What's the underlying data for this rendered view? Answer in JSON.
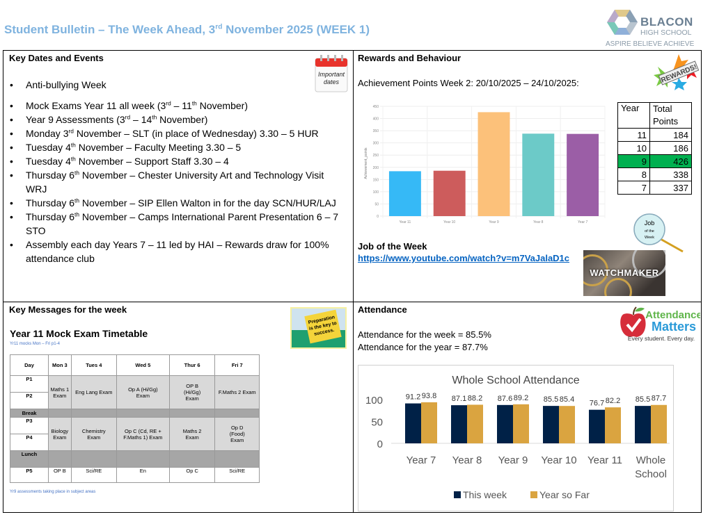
{
  "header": {
    "title_prefix": "Student Bulletin – The Week Ahead, 3",
    "title_sup": "rd",
    "title_suffix": " November 2025 (WEEK 1)",
    "logo_name": "BLACON",
    "logo_sub": "HIGH SCHOOL",
    "logo_tagline": "ASPIRE BELIEVE ACHIEVE"
  },
  "key_dates": {
    "heading": "Key Dates and Events",
    "image_text": "Important dates",
    "items": [
      {
        "a": "Anti-bullying Week"
      },
      {
        "a": "Mock Exams Year 11 all week (3",
        "s1": "rd",
        "b": " – 11",
        "s2": "th",
        "c": " November)"
      },
      {
        "a": "Year 9 Assessments (3",
        "s1": "rd",
        "b": " – 14",
        "s2": "th",
        "c": " November)"
      },
      {
        "a": "Monday 3",
        "s1": "rd",
        "b": " November – SLT (in place of Wednesday) 3.30 – 5 HUR"
      },
      {
        "a": "Tuesday 4",
        "s1": "th",
        "b": " November – Faculty Meeting 3.30 – 5"
      },
      {
        "a": "Tuesday 4",
        "s1": "th",
        "b": " November – Support Staff 3.30 – 4"
      },
      {
        "a": "Thursday 6",
        "s1": "th",
        "b": " November – Chester University Art and Technology Visit WRJ"
      },
      {
        "a": "Thursday 6",
        "s1": "th",
        "b": " November – SIP Ellen Walton in for the day SCN/HUR/LAJ"
      },
      {
        "a": "Thursday 6",
        "s1": "th",
        "b": " November – Camps International Parent Presentation 6 – 7 STO"
      },
      {
        "a": "Assembly each day Years 7 – 11 led by HAI – Rewards draw for 100% attendance club"
      }
    ]
  },
  "rewards": {
    "heading": "Rewards and Behaviour",
    "image_text": "REWARDS!",
    "subtitle": "Achievement Points Week 2: 20/10/2025 – 24/10/2025:",
    "table": {
      "headers": [
        "Year",
        "Total Points"
      ],
      "rows": [
        {
          "year": "11",
          "points": "184"
        },
        {
          "year": "10",
          "points": "186"
        },
        {
          "year": "9",
          "points": "426"
        },
        {
          "year": "8",
          "points": "338"
        },
        {
          "year": "7",
          "points": "337"
        }
      ]
    },
    "job_heading": "Job of the Week",
    "job_link": "https://www.youtube.com/watch?v=m7VaJalaD1c",
    "job_badge": [
      "Job",
      "of the",
      "Week"
    ],
    "job_image_text": "WATCHMAKER"
  },
  "messages": {
    "heading": "Key Messages for the week",
    "timetable_title": "Year 11 Mock Exam Timetable",
    "note_top": "Yr11 mocks Mon – Fri p1-4",
    "note_bottom": "Yr9 assessments taking place in subject areas",
    "image_text": "Preparation is the key to success.",
    "columns": [
      "Day",
      "Mon 3",
      "Tues 4",
      "Wed 5",
      "Thur 6",
      "Fri 7"
    ],
    "periods": {
      "p1": "P1",
      "p2": "P2",
      "brk": "Break",
      "p3": "P3",
      "p4": "P4",
      "lunch": "Lunch",
      "p5": "P5"
    },
    "am": [
      "Maths 1 Exam",
      "Eng Lang Exam",
      "Op A (Hi/Gg) Exam",
      "OP B (Hi/Gg) Exam",
      "F.Maths 2 Exam"
    ],
    "mid": [
      "Biology Exam",
      "Chemistry Exam",
      "Op C (Cd, RE + F.Maths 1) Exam",
      "Maths 2 Exam",
      "Op D (Food) Exam"
    ],
    "p5": [
      "OP B",
      "Sci/RE",
      "En",
      "Op C",
      "Sci/RE"
    ]
  },
  "attendance": {
    "heading": "Attendance",
    "week_line": "Attendance for the week = 85.5%",
    "year_line": "Attendance for the year = 87.7%",
    "logo_line1": "Attendance",
    "logo_line2": "Matters",
    "logo_line3": "Every student. Every day."
  },
  "chart_data": [
    {
      "type": "bar",
      "title": "",
      "xlabel": "",
      "ylabel": "Achievement_points",
      "categories": [
        "Year 11",
        "Year 10",
        "Year 9",
        "Year 8",
        "Year 7"
      ],
      "values": [
        184,
        186,
        426,
        338,
        337
      ],
      "colors": [
        "#36b9f6",
        "#cd5c5c",
        "#fcc17a",
        "#6ccac8",
        "#9b5ea6"
      ],
      "yticks": [
        0,
        50,
        100,
        150,
        200,
        250,
        300,
        350,
        400,
        450
      ],
      "ylim": [
        0,
        450
      ],
      "grid": true
    },
    {
      "type": "bar",
      "title": "Whole School Attendance",
      "xlabel": "",
      "ylabel": "",
      "categories": [
        "Year 7",
        "Year 8",
        "Year 9",
        "Year 10",
        "Year 11",
        "Whole School"
      ],
      "series": [
        {
          "name": "This week",
          "color": "#002147",
          "values": [
            91.2,
            87.1,
            87.6,
            85.5,
            76.7,
            85.5
          ]
        },
        {
          "name": "Year so Far",
          "color": "#daa440",
          "values": [
            93.8,
            88.2,
            89.2,
            85.4,
            82.2,
            87.7
          ]
        }
      ],
      "yticks": [
        0,
        50,
        100
      ],
      "ylim": [
        0,
        100
      ],
      "legend": "bottom",
      "grid": false
    }
  ]
}
